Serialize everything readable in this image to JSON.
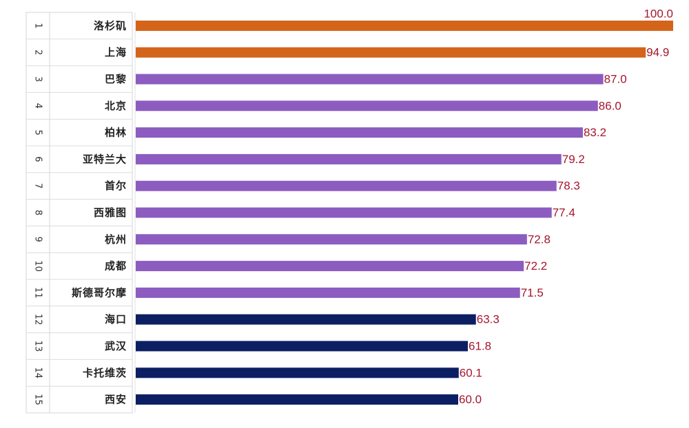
{
  "chart_data": {
    "type": "bar",
    "orientation": "horizontal",
    "grid": false,
    "xlim": [
      0,
      100
    ],
    "ranks": [
      "1",
      "2",
      "3",
      "4",
      "5",
      "6",
      "7",
      "8",
      "9",
      "10",
      "11",
      "12",
      "13",
      "14",
      "15"
    ],
    "categories": [
      "洛杉矶",
      "上海",
      "巴黎",
      "北京",
      "柏林",
      "亚特兰大",
      "首尔",
      "西雅图",
      "杭州",
      "成都",
      "斯德哥尔摩",
      "海口",
      "武汉",
      "卡托维茨",
      "西安"
    ],
    "values": [
      100.0,
      94.9,
      87.0,
      86.0,
      83.2,
      79.2,
      78.3,
      77.4,
      72.8,
      72.2,
      71.5,
      63.3,
      61.8,
      60.1,
      60.0
    ],
    "value_labels": [
      "100.0",
      "94.9",
      "87.0",
      "86.0",
      "83.2",
      "79.2",
      "78.3",
      "77.4",
      "72.8",
      "72.2",
      "71.5",
      "63.3",
      "61.8",
      "60.1",
      "60.0"
    ],
    "colors": [
      "#d3641a",
      "#d3641a",
      "#8c5cc0",
      "#8c5cc0",
      "#8c5cc0",
      "#8c5cc0",
      "#8c5cc0",
      "#8c5cc0",
      "#8c5cc0",
      "#8c5cc0",
      "#8c5cc0",
      "#0c1f63",
      "#0c1f63",
      "#0c1f63",
      "#0c1f63"
    ],
    "value_label_color": "#a4152d",
    "title": "",
    "xlabel": "",
    "ylabel": ""
  }
}
